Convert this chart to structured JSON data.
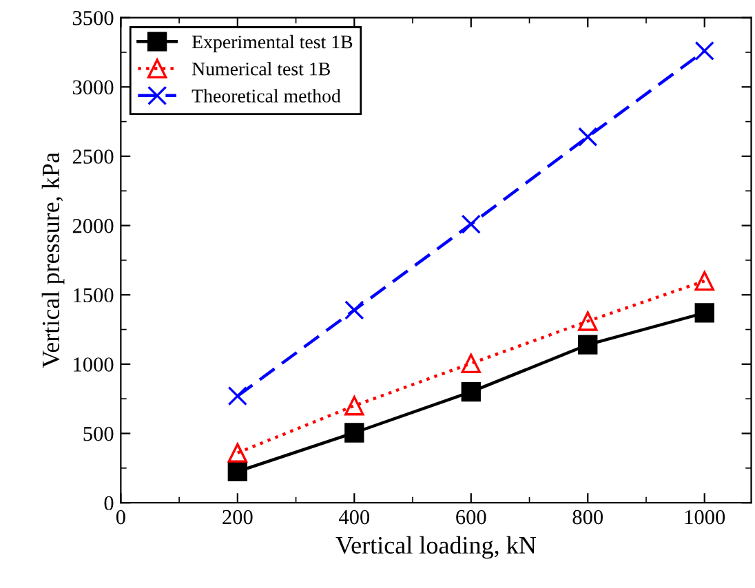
{
  "chart_data": {
    "type": "line",
    "xlabel": "Vertical loading, kN",
    "ylabel": "Vertical pressure, kPa",
    "x": [
      200,
      400,
      600,
      800,
      1000
    ],
    "series": [
      {
        "name": "Experimental test 1B",
        "color": "#000000",
        "values": [
          225,
          505,
          800,
          1140,
          1370
        ],
        "marker": "square",
        "line_style": "solid"
      },
      {
        "name": "Numerical test 1B",
        "color": "#ff0000",
        "values": [
          360,
          700,
          1005,
          1310,
          1600
        ],
        "marker": "triangle",
        "line_style": "dotted"
      },
      {
        "name": "Theoretical method",
        "color": "#0000ff",
        "values": [
          770,
          1390,
          2010,
          2640,
          3260
        ],
        "marker": "cross",
        "line_style": "dashed"
      }
    ],
    "xlim": [
      0,
      1080
    ],
    "xticks": [
      0,
      200,
      400,
      600,
      800,
      1000
    ],
    "ylim": [
      0,
      3500
    ],
    "yticks": [
      0,
      500,
      1000,
      1500,
      2000,
      2500,
      3000,
      3500
    ],
    "grid": false,
    "legend": "top left"
  }
}
